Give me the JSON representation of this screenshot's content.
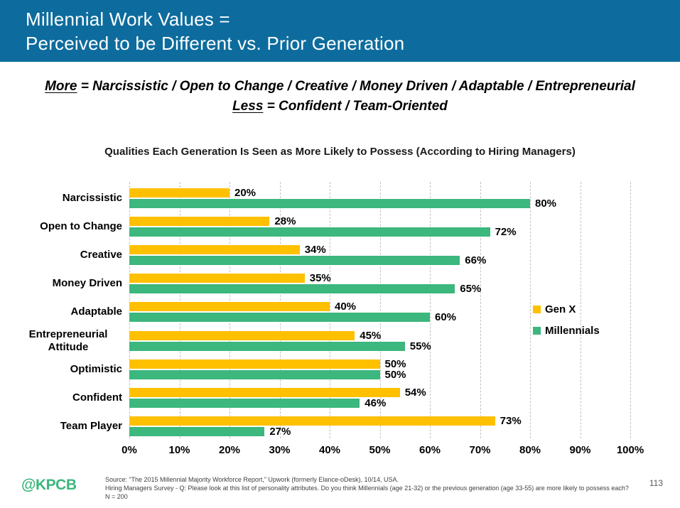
{
  "header": {
    "title_line1": "Millennial Work Values =",
    "title_line2": "Perceived to be Different vs. Prior Generation"
  },
  "subtitle": {
    "line1_term": "More",
    "line1_rest": " = Narcissistic / Open to Change / Creative / Money Driven / Adaptable / Entrepreneurial",
    "line2_term": "Less",
    "line2_rest": " = Confident / Team-Oriented"
  },
  "chart_data": {
    "type": "bar",
    "orientation": "horizontal",
    "title": "Qualities Each Generation Is Seen as More Likely to Possess (According to Hiring Managers)",
    "categories": [
      "Narcissistic",
      "Open to Change",
      "Creative",
      "Money Driven",
      "Adaptable",
      "Entrepreneurial Attitude",
      "Optimistic",
      "Confident",
      "Team Player"
    ],
    "series": [
      {
        "name": "Gen X",
        "color": "#ffc000",
        "values": [
          20,
          28,
          34,
          35,
          40,
          45,
          50,
          54,
          73
        ]
      },
      {
        "name": "Millennials",
        "color": "#3cb77d",
        "values": [
          80,
          72,
          66,
          65,
          60,
          55,
          50,
          46,
          27
        ]
      }
    ],
    "value_label_format": "{v}%",
    "x_ticks": [
      "0%",
      "10%",
      "20%",
      "30%",
      "40%",
      "50%",
      "60%",
      "70%",
      "80%",
      "90%",
      "100%"
    ],
    "xlim": [
      0,
      100
    ],
    "grid": "dashed-vertical",
    "legend_position": "right"
  },
  "footer": {
    "logo": "@KPCB",
    "source_line1": "Source: “The 2015 Millennial Majority Workforce Report,” Upwork (formerly Elance-oDesk), 10/14, USA.",
    "source_line2": "Hiring Managers Survey - Q: Please look at this list of personality attributes. Do you think Millennials (age 21-32) or the previous generation (age 33-55) are more likely to possess each? N = 200",
    "page_number": "113"
  },
  "colors": {
    "header_bg": "#0d6c9d",
    "gen_x": "#ffc000",
    "millennials": "#3cb77d",
    "gridline": "#c2c2c2",
    "logo_green": "#3cb77d"
  }
}
